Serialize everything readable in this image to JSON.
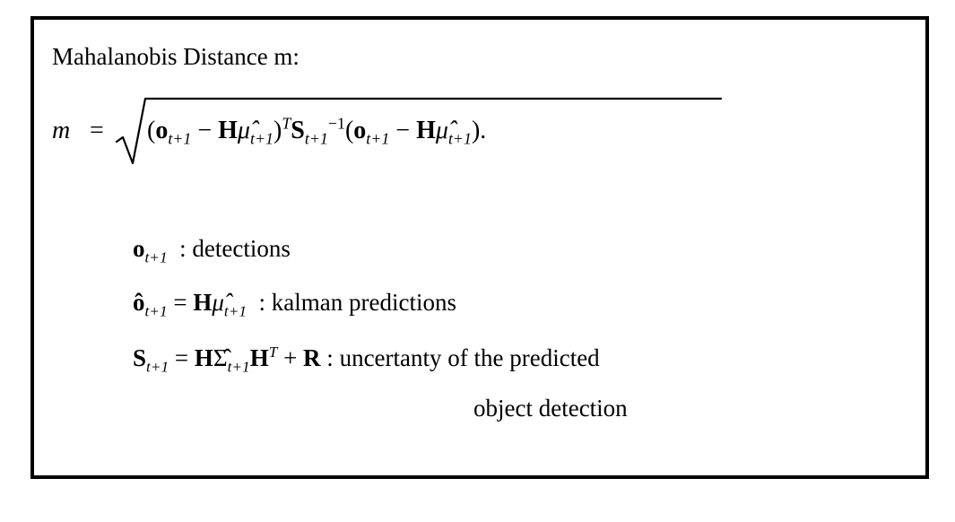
{
  "heading": "Mahalanobis Distance m:",
  "formula": {
    "lhs": "m",
    "equals": "=",
    "body_open": "(",
    "o_symbol": "o",
    "sub_t1": "t+1",
    "minus": "−",
    "H_symbol": "H",
    "mu_hat": "μ̂",
    "close_T": ")",
    "sup_T": "T",
    "S_symbol": "S",
    "sup_inv": "−1",
    "period": "."
  },
  "definitions": [
    {
      "symbol_main": "o",
      "symbol_sub": "t+1",
      "separator": ":",
      "description": "detections"
    },
    {
      "symbol_main": "ô",
      "symbol_sub": "t+1",
      "equals": "=",
      "rhs_H": "H",
      "rhs_mu": "μ̂",
      "rhs_sub": "t+1",
      "separator": ":",
      "description": "kalman predictions"
    },
    {
      "symbol_main": "S",
      "symbol_sub": "t+1",
      "equals": "=",
      "rhs_H": "H",
      "rhs_sigma": "Σ̂",
      "rhs_sub": "t+1",
      "rhs_H2": "H",
      "rhs_sup": "T",
      "plus": "+",
      "rhs_R": "R",
      "separator": ":",
      "description_line1": "uncertanty of the predicted",
      "description_line2": "object detection"
    }
  ]
}
